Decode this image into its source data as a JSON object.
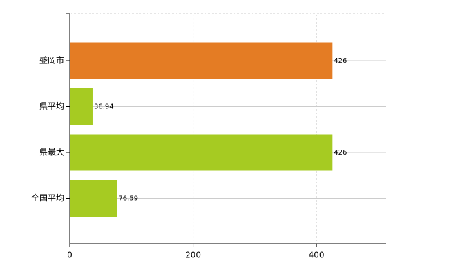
{
  "chart_data": {
    "type": "hbar",
    "categories": [
      "盛岡市",
      "県平均",
      "県最大",
      "全国平均"
    ],
    "values": [
      426,
      36.94,
      426,
      76.59
    ],
    "colors": [
      "#e47c24",
      "#a6cb22",
      "#a6cb22",
      "#a6cb22"
    ],
    "xlim": [
      0,
      513
    ],
    "xticks": [
      0,
      200,
      400
    ],
    "grid": true
  }
}
